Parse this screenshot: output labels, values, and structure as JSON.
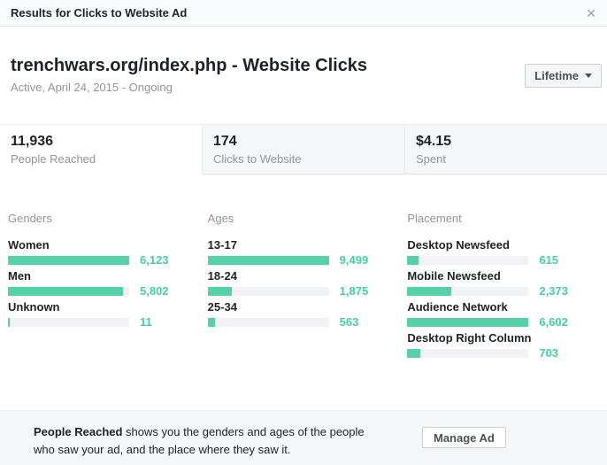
{
  "modal": {
    "title": "Results for Clicks to Website Ad",
    "close_glyph": "✕"
  },
  "ad": {
    "title": "trenchwars.org/index.php - Website Clicks",
    "status": "Active, April 24, 2015 - Ongoing",
    "range_button_label": "Lifetime"
  },
  "stats": {
    "items": [
      {
        "value": "11,936",
        "label": "People Reached",
        "active": true
      },
      {
        "value": "174",
        "label": "Clicks to Website",
        "active": false
      },
      {
        "value": "$4.15",
        "label": "Spent",
        "active": false
      }
    ]
  },
  "chart_data": [
    {
      "type": "bar",
      "orientation": "horizontal",
      "title": "Genders",
      "rows": [
        {
          "label": "Women",
          "value": 6123,
          "display": "6,123"
        },
        {
          "label": "Men",
          "value": 5802,
          "display": "5,802"
        },
        {
          "label": "Unknown",
          "value": 11,
          "display": "11"
        }
      ]
    },
    {
      "type": "bar",
      "orientation": "horizontal",
      "title": "Ages",
      "rows": [
        {
          "label": "13-17",
          "value": 9499,
          "display": "9,499"
        },
        {
          "label": "18-24",
          "value": 1875,
          "display": "1,875"
        },
        {
          "label": "25-34",
          "value": 563,
          "display": "563"
        }
      ]
    },
    {
      "type": "bar",
      "orientation": "horizontal",
      "title": "Placement",
      "rows": [
        {
          "label": "Desktop Newsfeed",
          "value": 615,
          "display": "615"
        },
        {
          "label": "Mobile Newsfeed",
          "value": 2373,
          "display": "2,373"
        },
        {
          "label": "Audience Network",
          "value": 6602,
          "display": "6,602"
        },
        {
          "label": "Desktop Right Column",
          "value": 703,
          "display": "703"
        }
      ]
    }
  ],
  "footer": {
    "highlight": "People Reached",
    "description": " shows you the genders and ages of the people who saw your ad, and the place where they saw it.",
    "button_label": "Manage Ad"
  },
  "colors": {
    "bar_fill": "#55d0a8",
    "bar_track": "#f0f2f5",
    "value_text": "#42cfa4",
    "tab_inactive_bg": "#f5f6f7"
  }
}
